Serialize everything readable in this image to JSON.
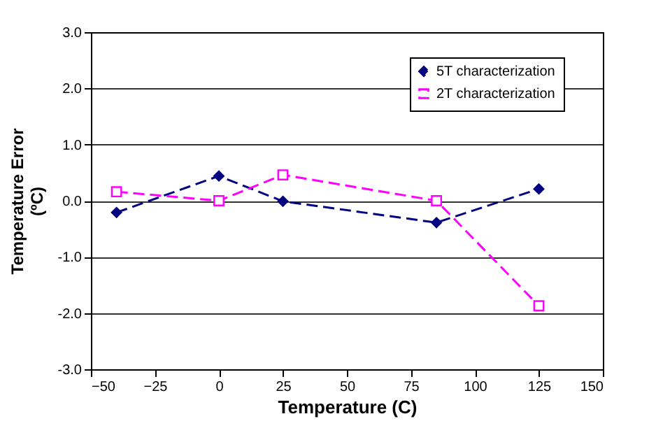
{
  "chart_data": {
    "type": "line",
    "xlabel": "Temperature (C)",
    "ylabel": "Temperature Error (ºC)",
    "x": [
      -40,
      0,
      25,
      85,
      125
    ],
    "series": [
      {
        "name": "5T characterization",
        "color": "#000080",
        "marker": "diamond",
        "line_style": "dashed",
        "values": [
          -0.21,
          0.44,
          -0.01,
          -0.39,
          0.21
        ]
      },
      {
        "name": "2T characterization",
        "color": "#ff00ff",
        "marker": "square",
        "line_style": "dashed",
        "values": [
          0.16,
          0.0,
          0.46,
          0.0,
          -1.87
        ]
      }
    ],
    "xlim": [
      -50,
      150
    ],
    "xticks": [
      -50,
      -25,
      0,
      25,
      50,
      75,
      100,
      125,
      150
    ],
    "ylim": [
      -3,
      3
    ],
    "yticks": [
      {
        "value": -3,
        "label": "-3.0"
      },
      {
        "value": -2,
        "label": "-2.0"
      },
      {
        "value": -1,
        "label": "-1.0"
      },
      {
        "value": 0,
        "label": "0.0"
      },
      {
        "value": 1,
        "label": "1.0"
      },
      {
        "value": 2,
        "label": "2.0"
      },
      {
        "value": 3,
        "label": "3.0"
      }
    ],
    "grid": "y",
    "legend": "top right"
  }
}
